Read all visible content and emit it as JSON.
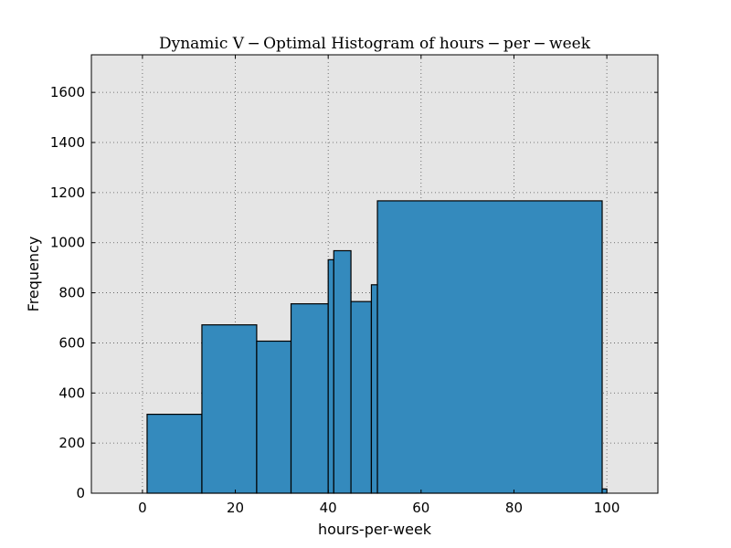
{
  "chart_data": {
    "type": "bar",
    "title": "Dynamic V − Optimal Histogram of hours − per − week",
    "xlabel": "hours-per-week",
    "ylabel": "Frequency",
    "xlim": [
      -11,
      111
    ],
    "ylim": [
      0,
      1750
    ],
    "xticks": [
      0,
      20,
      40,
      60,
      80,
      100
    ],
    "yticks": [
      0,
      200,
      400,
      600,
      800,
      1000,
      1200,
      1400,
      1600
    ],
    "grid": true,
    "bins": [
      {
        "x0": 1,
        "x1": 12.8,
        "value": 315
      },
      {
        "x0": 12.8,
        "x1": 24.6,
        "value": 672
      },
      {
        "x0": 24.6,
        "x1": 32.0,
        "value": 607
      },
      {
        "x0": 32.0,
        "x1": 40.0,
        "value": 756
      },
      {
        "x0": 40.0,
        "x1": 41.2,
        "value": 932
      },
      {
        "x0": 41.2,
        "x1": 44.9,
        "value": 968
      },
      {
        "x0": 44.9,
        "x1": 49.3,
        "value": 765
      },
      {
        "x0": 49.3,
        "x1": 50.6,
        "value": 832
      },
      {
        "x0": 50.6,
        "x1": 99.0,
        "value": 1167
      },
      {
        "x0": 99.0,
        "x1": 100.0,
        "value": 17
      }
    ],
    "colors": {
      "bar_fill": "#348abd",
      "bar_stroke": "#000000",
      "plot_bg": "#e5e5e5",
      "grid": "#555555"
    }
  }
}
